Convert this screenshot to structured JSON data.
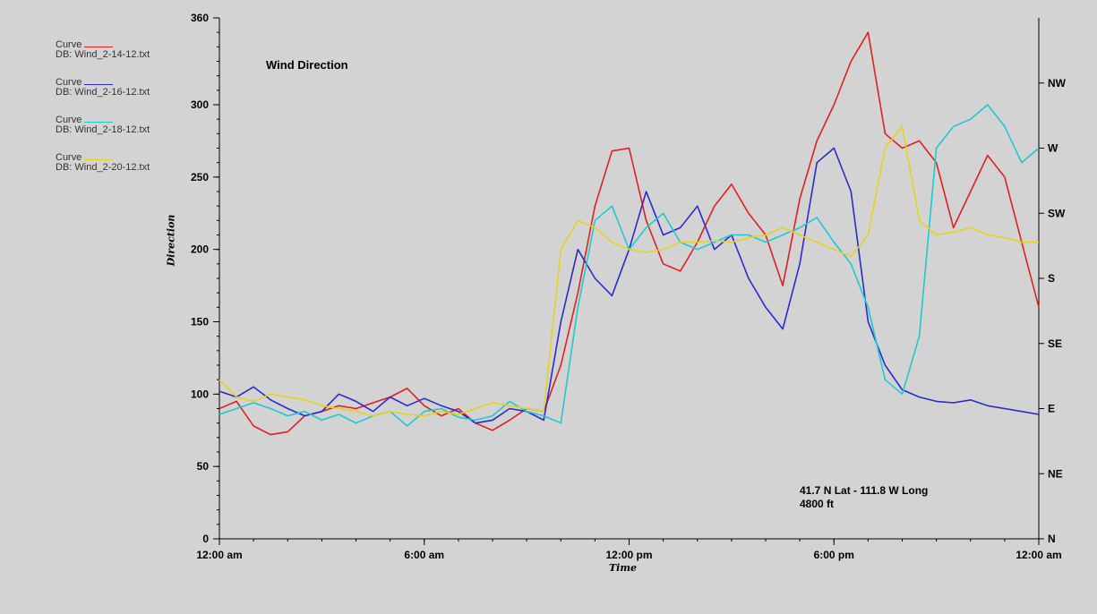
{
  "chart_data": {
    "type": "line",
    "title": "Wind Direction",
    "xlabel": "Time",
    "ylabel": "Direction",
    "xlim": [
      0,
      24
    ],
    "ylim": [
      0,
      360
    ],
    "x_ticks": [
      {
        "value": 0,
        "label": "12:00 am"
      },
      {
        "value": 6,
        "label": "6:00 am"
      },
      {
        "value": 12,
        "label": "12:00 pm"
      },
      {
        "value": 18,
        "label": "6:00 pm"
      },
      {
        "value": 24,
        "label": "12:00 am"
      }
    ],
    "y_ticks": [
      {
        "value": 0,
        "label": "0"
      },
      {
        "value": 50,
        "label": "50"
      },
      {
        "value": 100,
        "label": "100"
      },
      {
        "value": 150,
        "label": "150"
      },
      {
        "value": 200,
        "label": "200"
      },
      {
        "value": 250,
        "label": "250"
      },
      {
        "value": 300,
        "label": "300"
      },
      {
        "value": 360,
        "label": "360"
      }
    ],
    "y2_ticks": [
      {
        "value": 0,
        "label": "N"
      },
      {
        "value": 45,
        "label": "NE"
      },
      {
        "value": 90,
        "label": "E"
      },
      {
        "value": 135,
        "label": "SE"
      },
      {
        "value": 180,
        "label": "S"
      },
      {
        "value": 225,
        "label": "SW"
      },
      {
        "value": 270,
        "label": "W"
      },
      {
        "value": 315,
        "label": "NW"
      }
    ],
    "grid": false,
    "legend_position": "left-outside-top",
    "annotation": [
      "41.7 N Lat - 111.8 W Long",
      "4800 ft"
    ],
    "series": [
      {
        "legend_curve": "Curve",
        "legend_db": "DB: Wind_2-14-12.txt",
        "color": "#e02020",
        "x": [
          0,
          0.5,
          1,
          1.5,
          2,
          2.5,
          3,
          3.5,
          4,
          4.5,
          5,
          5.5,
          6,
          6.5,
          7,
          7.5,
          8,
          8.5,
          9,
          9.5,
          10,
          10.5,
          11,
          11.5,
          12,
          12.5,
          13,
          13.5,
          14,
          14.5,
          15,
          15.5,
          16,
          16.5,
          17,
          17.5,
          18,
          18.5,
          19,
          19.5,
          20,
          20.5,
          21,
          21.5,
          22,
          22.5,
          23,
          23.5,
          24
        ],
        "values": [
          90,
          95,
          78,
          72,
          74,
          85,
          88,
          92,
          90,
          94,
          98,
          104,
          92,
          85,
          90,
          80,
          75,
          82,
          90,
          88,
          120,
          170,
          230,
          268,
          270,
          220,
          190,
          185,
          205,
          230,
          245,
          225,
          210,
          175,
          235,
          275,
          300,
          330,
          350,
          280,
          270,
          275,
          260,
          215,
          240,
          265,
          250,
          205,
          160
        ]
      },
      {
        "legend_curve": "Curve",
        "legend_db": "DB: Wind_2-16-12.txt",
        "color": "#2a2ad0",
        "x": [
          0,
          0.5,
          1,
          1.5,
          2,
          2.5,
          3,
          3.5,
          4,
          4.5,
          5,
          5.5,
          6,
          6.5,
          7,
          7.5,
          8,
          8.5,
          9,
          9.5,
          10,
          10.5,
          11,
          11.5,
          12,
          12.5,
          13,
          13.5,
          14,
          14.5,
          15,
          15.5,
          16,
          16.5,
          17,
          17.5,
          18,
          18.5,
          19,
          19.5,
          20,
          20.5,
          21,
          21.5,
          22,
          22.5,
          23,
          23.5,
          24
        ],
        "values": [
          102,
          98,
          105,
          96,
          90,
          85,
          88,
          100,
          95,
          88,
          98,
          92,
          97,
          92,
          88,
          80,
          82,
          90,
          88,
          82,
          150,
          200,
          180,
          168,
          200,
          240,
          210,
          215,
          230,
          200,
          210,
          180,
          160,
          145,
          190,
          260,
          270,
          240,
          150,
          120,
          103,
          98,
          95,
          94,
          96,
          92,
          90,
          88,
          86
        ]
      },
      {
        "legend_curve": "Curve",
        "legend_db": "DB: Wind_2-18-12.txt",
        "color": "#20c8d0",
        "x": [
          0,
          0.5,
          1,
          1.5,
          2,
          2.5,
          3,
          3.5,
          4,
          4.5,
          5,
          5.5,
          6,
          6.5,
          7,
          7.5,
          8,
          8.5,
          9,
          9.5,
          10,
          10.5,
          11,
          11.5,
          12,
          12.5,
          13,
          13.5,
          14,
          14.5,
          15,
          15.5,
          16,
          16.5,
          17,
          17.5,
          18,
          18.5,
          19,
          19.5,
          20,
          20.5,
          21,
          21.5,
          22,
          22.5,
          23,
          23.5,
          24
        ],
        "values": [
          86,
          90,
          94,
          90,
          85,
          88,
          82,
          86,
          80,
          85,
          88,
          78,
          88,
          90,
          84,
          82,
          85,
          95,
          88,
          85,
          80,
          160,
          220,
          230,
          200,
          215,
          225,
          205,
          200,
          205,
          210,
          210,
          205,
          210,
          215,
          222,
          205,
          190,
          160,
          110,
          100,
          140,
          270,
          285,
          290,
          300,
          285,
          260,
          270
        ]
      },
      {
        "legend_curve": "Curve",
        "legend_db": "DB: Wind_2-20-12.txt",
        "color": "#e6d21e",
        "x": [
          0,
          0.5,
          1,
          1.5,
          2,
          2.5,
          3,
          3.5,
          4,
          4.5,
          5,
          5.5,
          6,
          6.5,
          7,
          7.5,
          8,
          8.5,
          9,
          9.5,
          10,
          10.5,
          11,
          11.5,
          12,
          12.5,
          13,
          13.5,
          14,
          14.5,
          15,
          15.5,
          16,
          16.5,
          17,
          17.5,
          18,
          18.5,
          19,
          19.5,
          20,
          20.5,
          21,
          21.5,
          22,
          22.5,
          23,
          23.5,
          24
        ],
        "values": [
          110,
          98,
          95,
          100,
          98,
          96,
          92,
          90,
          88,
          85,
          88,
          86,
          85,
          88,
          86,
          90,
          94,
          92,
          90,
          88,
          200,
          220,
          215,
          205,
          200,
          198,
          200,
          205,
          205,
          206,
          205,
          208,
          210,
          215,
          210,
          205,
          200,
          195,
          210,
          270,
          285,
          220,
          210,
          212,
          215,
          210,
          208,
          205,
          205
        ]
      }
    ]
  }
}
